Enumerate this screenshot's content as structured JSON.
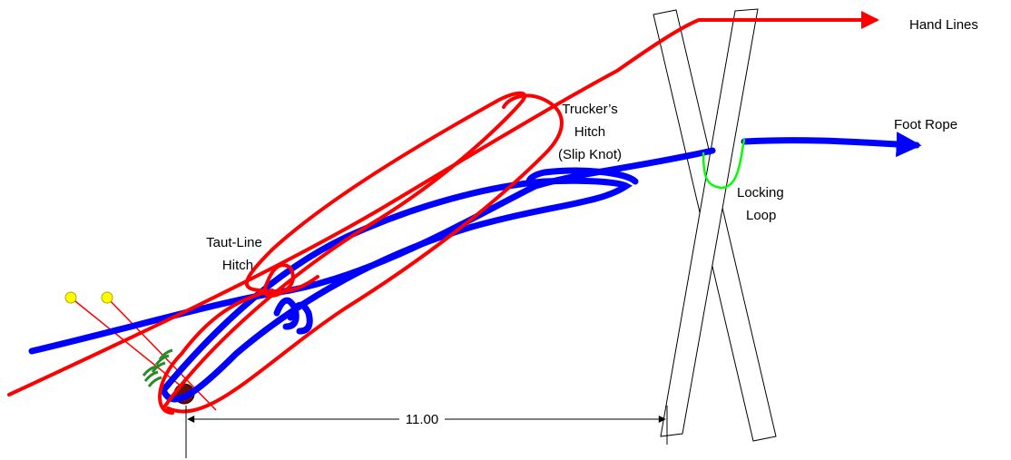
{
  "hand_lines": "Hand Lines",
  "foot_rope": "Foot Rope",
  "truckers_hitch": [
    "Trucker’s",
    "Hitch",
    "(Slip Knot)"
  ],
  "taut_line_hitch": [
    "Taut-Line",
    "Hitch"
  ],
  "locking_loop": [
    "Locking",
    "Loop"
  ],
  "dimension": "11.00"
}
